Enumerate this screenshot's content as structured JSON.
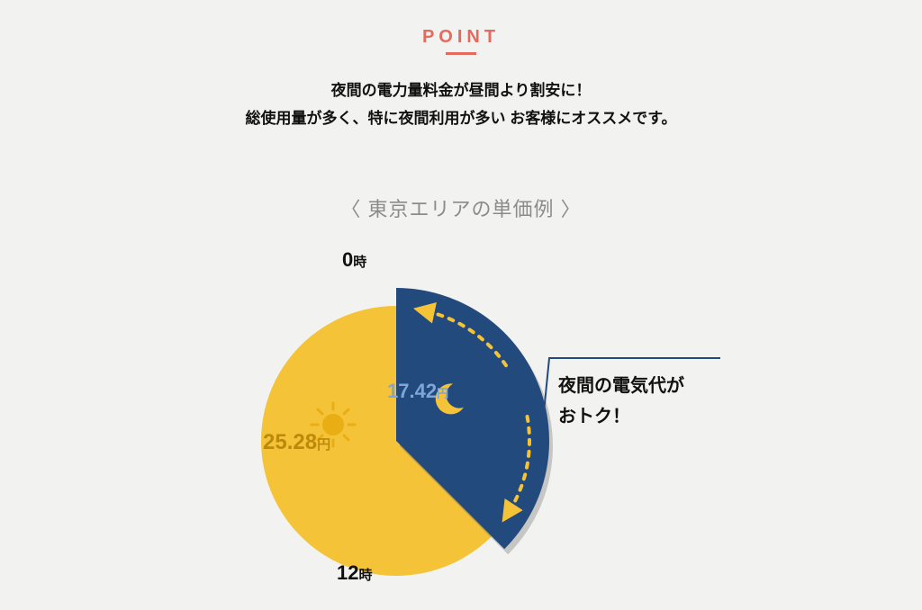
{
  "header": {
    "badge": "POINT",
    "lead_line1": "夜間の電力量料金が昼間より割安に！",
    "lead_line2": "総使用量が多く、特に夜間利用が多い お客様にオススメです。"
  },
  "subtitle": "〈 東京エリアの単価例 〉",
  "clock": {
    "top_hour": "0",
    "bottom_hour": "12",
    "hour_suffix": "時"
  },
  "chart": {
    "type": "pie",
    "radius": 150,
    "background_color": "#f2f2f0",
    "slices": [
      {
        "name": "day",
        "start_deg": 135,
        "end_deg": 360,
        "color": "#f5c337",
        "radius": 150,
        "price_value": "25.28",
        "price_unit": "円",
        "price_color": "#bc8a0b",
        "icon": "sun",
        "icon_color": "#e8ae14"
      },
      {
        "name": "night",
        "start_deg": 0,
        "end_deg": 135,
        "color": "#234a7d",
        "radius": 170,
        "price_value": "17.42",
        "price_unit": "円",
        "price_color": "#7fa6d6",
        "icon": "moon",
        "icon_color": "#f5c337",
        "arrow_color": "#f5c337"
      }
    ]
  },
  "callout": {
    "line1": "夜間の電気代が",
    "line2": "おトク！",
    "line_color": "#234a7d"
  },
  "colors": {
    "accent": "#e46a5e",
    "text": "#111111",
    "muted": "#8b8b8b",
    "bg": "#f2f2f0"
  },
  "typography": {
    "badge_fontsize": 20,
    "lead_fontsize": 17,
    "subtitle_fontsize": 22,
    "price_day_fontsize": 24,
    "price_night_fontsize": 22,
    "callout_fontsize": 20,
    "hour_fontsize": 22
  }
}
